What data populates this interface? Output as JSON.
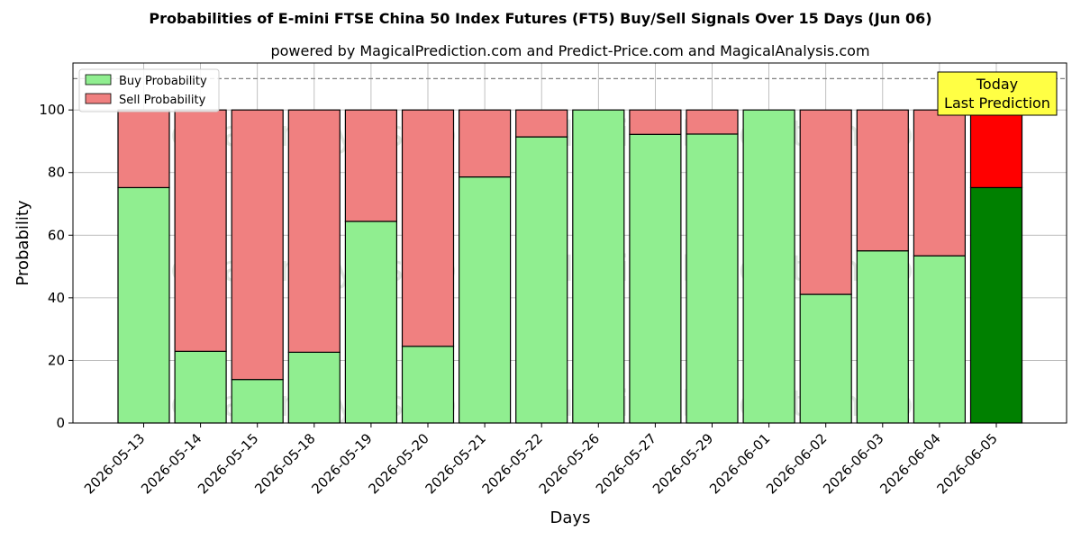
{
  "chart_data": {
    "type": "bar",
    "stacked": true,
    "title": "Probabilities of E-mini FTSE China 50 Index Futures (FT5) Buy/Sell Signals Over 15 Days (Jun 06)",
    "subtitle": "powered by MagicalPrediction.com and Predict-Price.com and MagicalAnalysis.com",
    "xlabel": "Days",
    "ylabel": "Probability",
    "ylim": [
      0,
      115
    ],
    "yticks": [
      0,
      20,
      40,
      60,
      80,
      100
    ],
    "reference_line": 110,
    "grid": true,
    "legend_placement": "top-left",
    "categories": [
      "2026-05-13",
      "2026-05-14",
      "2026-05-15",
      "2026-05-18",
      "2026-05-19",
      "2026-05-20",
      "2026-05-21",
      "2026-05-22",
      "2026-05-26",
      "2026-05-27",
      "2026-05-29",
      "2026-06-01",
      "2026-06-02",
      "2026-06-03",
      "2026-06-04",
      "2026-06-05"
    ],
    "series": [
      {
        "name": "Buy Probability",
        "color": "#90ee90",
        "highlight_color": "#008000",
        "values": [
          75.2,
          22.9,
          13.9,
          22.6,
          64.4,
          24.5,
          78.6,
          91.4,
          100,
          92.2,
          92.3,
          100,
          41.1,
          55.0,
          53.4,
          75.2
        ]
      },
      {
        "name": "Sell Probability",
        "color": "#f08080",
        "highlight_color": "#ff0000",
        "values": [
          24.8,
          77.1,
          86.1,
          77.4,
          35.6,
          75.5,
          21.4,
          8.6,
          0,
          7.8,
          7.7,
          0,
          58.9,
          45.0,
          46.6,
          24.8
        ]
      }
    ],
    "highlight_index": 15,
    "annotation": {
      "line1": "Today",
      "line2": "Last Prediction",
      "color": "#ffff44"
    },
    "watermarks": [
      "MagicalAnalysis.com",
      "MagicalPrediction.com"
    ]
  }
}
